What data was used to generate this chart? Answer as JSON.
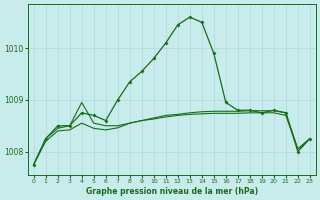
{
  "title": "Graphe pression niveau de la mer (hPa)",
  "background_color": "#c8ecec",
  "grid_color": "#b0d8d8",
  "line_color": "#1a6b1a",
  "xlim": [
    -0.5,
    23.5
  ],
  "ylim": [
    1007.55,
    1010.85
  ],
  "yticks": [
    1008,
    1009,
    1010
  ],
  "xticks": [
    0,
    1,
    2,
    3,
    4,
    5,
    6,
    7,
    8,
    9,
    10,
    11,
    12,
    13,
    14,
    15,
    16,
    17,
    18,
    19,
    20,
    21,
    22,
    23
  ],
  "series1": {
    "x": [
      0,
      1,
      2,
      3,
      4,
      5,
      6,
      7,
      8,
      9,
      10,
      11,
      12,
      13,
      14,
      15,
      16,
      17,
      18,
      19,
      20,
      21,
      22,
      23
    ],
    "y": [
      1007.75,
      1008.25,
      1008.5,
      1008.5,
      1008.75,
      1008.7,
      1008.6,
      1009.0,
      1009.35,
      1009.55,
      1009.8,
      1010.1,
      1010.45,
      1010.6,
      1010.5,
      1009.9,
      1008.95,
      1008.8,
      1008.8,
      1008.75,
      1008.8,
      1008.75,
      1008.0,
      1008.25
    ]
  },
  "series2": {
    "x": [
      0,
      1,
      2,
      3,
      4,
      5,
      6,
      7,
      8,
      9,
      10,
      11,
      12,
      13,
      14,
      15,
      16,
      17,
      18,
      19,
      20,
      21,
      22,
      23
    ],
    "y": [
      1007.75,
      1008.25,
      1008.45,
      1008.5,
      1008.95,
      1008.55,
      1008.5,
      1008.5,
      1008.55,
      1008.6,
      1008.65,
      1008.7,
      1008.72,
      1008.75,
      1008.77,
      1008.78,
      1008.78,
      1008.78,
      1008.79,
      1008.79,
      1008.79,
      1008.75,
      1008.05,
      1008.25
    ]
  },
  "series3": {
    "x": [
      0,
      1,
      2,
      3,
      4,
      5,
      6,
      7,
      8,
      9,
      10,
      11,
      12,
      13,
      14,
      15,
      16,
      17,
      18,
      19,
      20,
      21,
      22,
      23
    ],
    "y": [
      1007.75,
      1008.2,
      1008.4,
      1008.42,
      1008.55,
      1008.45,
      1008.42,
      1008.46,
      1008.55,
      1008.6,
      1008.63,
      1008.67,
      1008.7,
      1008.72,
      1008.73,
      1008.74,
      1008.74,
      1008.74,
      1008.75,
      1008.75,
      1008.75,
      1008.7,
      1008.05,
      1008.25
    ]
  }
}
